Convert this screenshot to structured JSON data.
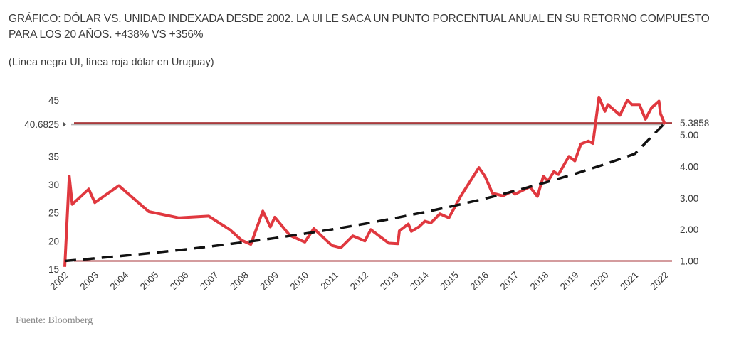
{
  "title": "GRÁFICO: DÓLAR VS. UNIDAD INDEXADA DESDE 2002. LA UI LE SACA UN PUNTO PORCENTUAL ANUAL EN SU RETORNO COMPUESTO PARA LOS 20 AÑOS. +438% VS +356%",
  "subtitle": "(Línea negra UI, línea roja dólar en Uruguay)",
  "source": "Fuente: Bloomberg",
  "colors": {
    "dollar": "#e0383f",
    "ui": "#111111",
    "band": "#a83a3c",
    "marker": "#b3b3b3",
    "text": "#3a3a3a"
  },
  "chart_data": {
    "type": "line",
    "title": "",
    "xlabel": "",
    "ylabel": "",
    "x_ticks": [
      "2002",
      "2003",
      "2004",
      "2005",
      "2006",
      "2007",
      "2008",
      "2009",
      "2010",
      "2011",
      "2012",
      "2013",
      "2014",
      "2015",
      "2016",
      "2017",
      "2018",
      "2019",
      "2020",
      "2021",
      "2022"
    ],
    "x_range": [
      2002,
      2022
    ],
    "y_left": {
      "ticks": [
        "15",
        "20",
        "25",
        "30",
        "35",
        "40",
        "45"
      ],
      "tick_values": [
        15,
        20,
        25,
        30,
        35,
        40,
        45
      ],
      "range": [
        15,
        46.5
      ]
    },
    "y_right": {
      "ticks": [
        "1.00",
        "2.00",
        "3.00",
        "4.00",
        "5.00"
      ],
      "tick_values": [
        1,
        2,
        3,
        4,
        5
      ],
      "range": [
        0.74,
        6.38
      ]
    },
    "reference_lines": [
      {
        "axis": "left",
        "value": 40.6825,
        "label": "40.6825"
      },
      {
        "axis": "right",
        "value": 5.3858,
        "label": "5.3858"
      },
      {
        "axis": "right",
        "value": 1.0,
        "label": ""
      }
    ],
    "series": [
      {
        "axis": "left",
        "style": "solid",
        "points": [
          [
            2002.0,
            15.4
          ],
          [
            2002.15,
            31.5
          ],
          [
            2002.25,
            26.5
          ],
          [
            2002.8,
            29.2
          ],
          [
            2003.0,
            26.8
          ],
          [
            2003.8,
            29.8
          ],
          [
            2004.8,
            25.2
          ],
          [
            2005.8,
            24.1
          ],
          [
            2006.8,
            24.4
          ],
          [
            2007.5,
            22.0
          ],
          [
            2007.9,
            20.1
          ],
          [
            2008.2,
            19.4
          ],
          [
            2008.6,
            25.3
          ],
          [
            2008.85,
            22.5
          ],
          [
            2009.0,
            24.2
          ],
          [
            2009.5,
            21.0
          ],
          [
            2010.0,
            19.8
          ],
          [
            2010.3,
            22.2
          ],
          [
            2010.9,
            19.2
          ],
          [
            2011.2,
            18.8
          ],
          [
            2011.6,
            20.9
          ],
          [
            2012.0,
            20.0
          ],
          [
            2012.2,
            22.0
          ],
          [
            2012.8,
            19.6
          ],
          [
            2013.1,
            19.5
          ],
          [
            2013.15,
            21.8
          ],
          [
            2013.45,
            23.0
          ],
          [
            2013.55,
            21.7
          ],
          [
            2013.8,
            22.5
          ],
          [
            2014.0,
            23.5
          ],
          [
            2014.2,
            23.2
          ],
          [
            2014.5,
            24.8
          ],
          [
            2014.8,
            24.1
          ],
          [
            2015.2,
            28.0
          ],
          [
            2015.8,
            33.0
          ],
          [
            2016.0,
            31.5
          ],
          [
            2016.25,
            28.5
          ],
          [
            2016.6,
            28.0
          ],
          [
            2016.9,
            28.8
          ],
          [
            2017.0,
            28.3
          ],
          [
            2017.5,
            29.6
          ],
          [
            2017.75,
            27.9
          ],
          [
            2017.95,
            31.5
          ],
          [
            2018.1,
            30.6
          ],
          [
            2018.3,
            32.3
          ],
          [
            2018.45,
            31.8
          ],
          [
            2018.8,
            35.0
          ],
          [
            2019.0,
            34.2
          ],
          [
            2019.2,
            37.2
          ],
          [
            2019.45,
            37.7
          ],
          [
            2019.6,
            37.3
          ],
          [
            2019.8,
            45.5
          ],
          [
            2020.0,
            43.0
          ],
          [
            2020.1,
            44.2
          ],
          [
            2020.5,
            42.3
          ],
          [
            2020.75,
            45.0
          ],
          [
            2020.9,
            44.2
          ],
          [
            2021.15,
            44.2
          ],
          [
            2021.35,
            41.6
          ],
          [
            2021.55,
            43.6
          ],
          [
            2021.8,
            44.8
          ],
          [
            2021.85,
            42.6
          ],
          [
            2022.0,
            40.6825
          ]
        ]
      },
      {
        "axis": "right",
        "style": "dashed",
        "points": [
          [
            2002,
            1.0
          ],
          [
            2003,
            1.081
          ],
          [
            2004,
            1.169
          ],
          [
            2005,
            1.264
          ],
          [
            2006,
            1.366
          ],
          [
            2007,
            1.477
          ],
          [
            2008,
            1.597
          ],
          [
            2009,
            1.727
          ],
          [
            2010,
            1.867
          ],
          [
            2011,
            2.018
          ],
          [
            2012,
            2.182
          ],
          [
            2013,
            2.359
          ],
          [
            2014,
            2.551
          ],
          [
            2015,
            2.757
          ],
          [
            2016,
            2.981
          ],
          [
            2017,
            3.223
          ],
          [
            2018,
            3.485
          ],
          [
            2019,
            3.767
          ],
          [
            2020,
            4.073
          ],
          [
            2021,
            4.404
          ],
          [
            2022,
            5.3858
          ]
        ]
      }
    ],
    "grid": false,
    "legend": "none"
  }
}
